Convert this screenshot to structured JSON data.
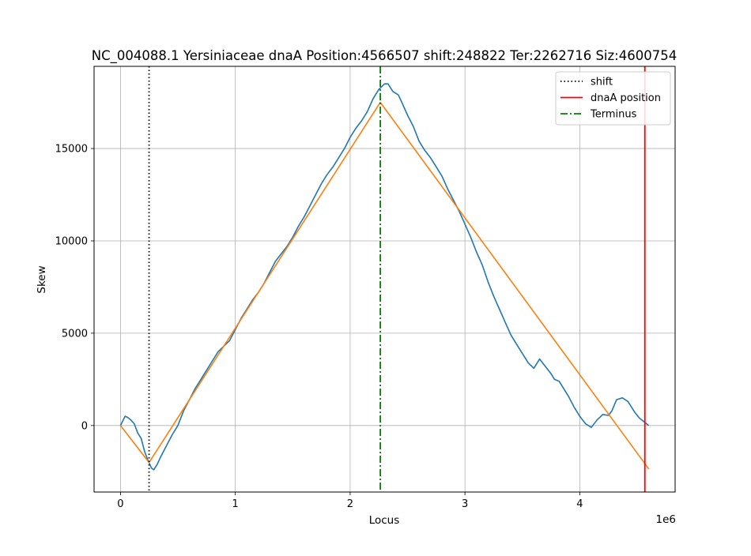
{
  "chart_data": {
    "type": "line",
    "title": "NC_004088.1 Yersiniaceae dnaA Position:4566507 shift:248822 Ter:2262716 Siz:4600754",
    "xlabel": "Locus",
    "ylabel": "Skew",
    "x_offset_label": "1e6",
    "xlim": [
      -230000,
      4830000
    ],
    "ylim": [
      -3600,
      19450
    ],
    "x_ticks": [
      {
        "value": 0,
        "label": "0"
      },
      {
        "value": 1000000,
        "label": "1"
      },
      {
        "value": 2000000,
        "label": "2"
      },
      {
        "value": 3000000,
        "label": "3"
      },
      {
        "value": 4000000,
        "label": "4"
      }
    ],
    "y_ticks": [
      {
        "value": 0,
        "label": "0"
      },
      {
        "value": 5000,
        "label": "5000"
      },
      {
        "value": 10000,
        "label": "10000"
      },
      {
        "value": 15000,
        "label": "15000"
      }
    ],
    "grid": true,
    "legend_position": "top-right",
    "legend": [
      {
        "label": "shift",
        "color": "#000000",
        "style": "dotted"
      },
      {
        "label": "dnaA position",
        "color": "#ff0000",
        "style": "solid"
      },
      {
        "label": "Terminus",
        "color": "#008000",
        "style": "dashdot"
      }
    ],
    "vlines": [
      {
        "name": "shift",
        "x": 248822,
        "color": "#000000",
        "style": "dotted"
      },
      {
        "name": "dnaA position",
        "x": 4566507,
        "color": "#ff0000",
        "style": "solid"
      },
      {
        "name": "Terminus",
        "x": 2262716,
        "color": "#008000",
        "style": "dashdot"
      }
    ],
    "series": [
      {
        "color": "#1f77b4",
        "x": [
          0,
          40000,
          60000,
          90000,
          120000,
          150000,
          180000,
          210000,
          240000,
          270000,
          290000,
          320000,
          350000,
          400000,
          450000,
          500000,
          550000,
          600000,
          650000,
          700000,
          750000,
          800000,
          850000,
          900000,
          950000,
          1000000,
          1050000,
          1100000,
          1150000,
          1200000,
          1250000,
          1300000,
          1350000,
          1400000,
          1450000,
          1500000,
          1550000,
          1600000,
          1650000,
          1700000,
          1750000,
          1800000,
          1850000,
          1900000,
          1950000,
          2000000,
          2050000,
          2100000,
          2150000,
          2200000,
          2250000,
          2300000,
          2330000,
          2370000,
          2420000,
          2450000,
          2500000,
          2550000,
          2600000,
          2650000,
          2700000,
          2750000,
          2800000,
          2850000,
          2900000,
          2950000,
          3000000,
          3050000,
          3100000,
          3150000,
          3200000,
          3250000,
          3300000,
          3350000,
          3400000,
          3450000,
          3500000,
          3550000,
          3600000,
          3650000,
          3700000,
          3750000,
          3780000,
          3820000,
          3850000,
          3900000,
          3950000,
          4000000,
          4050000,
          4100000,
          4150000,
          4200000,
          4250000,
          4280000,
          4320000,
          4370000,
          4420000,
          4450000,
          4480000,
          4520000,
          4560000,
          4600000
        ],
        "y": [
          0,
          500,
          450,
          300,
          100,
          -400,
          -700,
          -1400,
          -1900,
          -2300,
          -2400,
          -2100,
          -1700,
          -1100,
          -500,
          0,
          800,
          1400,
          2000,
          2500,
          3000,
          3500,
          4000,
          4300,
          4600,
          5200,
          5800,
          6300,
          6800,
          7200,
          7700,
          8300,
          8900,
          9300,
          9700,
          10200,
          10800,
          11300,
          11900,
          12500,
          13100,
          13600,
          14000,
          14500,
          15000,
          15600,
          16100,
          16500,
          17000,
          17700,
          18200,
          18500,
          18500,
          18100,
          17900,
          17500,
          16800,
          16200,
          15400,
          14900,
          14500,
          14000,
          13500,
          12800,
          12200,
          11600,
          10900,
          10200,
          9400,
          8700,
          7800,
          7000,
          6300,
          5600,
          4900,
          4400,
          3900,
          3400,
          3100,
          3600,
          3200,
          2800,
          2500,
          2400,
          2100,
          1600,
          1000,
          500,
          100,
          -100,
          300,
          600,
          550,
          800,
          1400,
          1500,
          1300,
          1000,
          700,
          400,
          200,
          0
        ]
      },
      {
        "color": "#ff7f0e",
        "x": [
          0,
          248822,
          2262716,
          4600754
        ],
        "y": [
          0,
          -2000,
          17500,
          -2350
        ]
      }
    ]
  }
}
